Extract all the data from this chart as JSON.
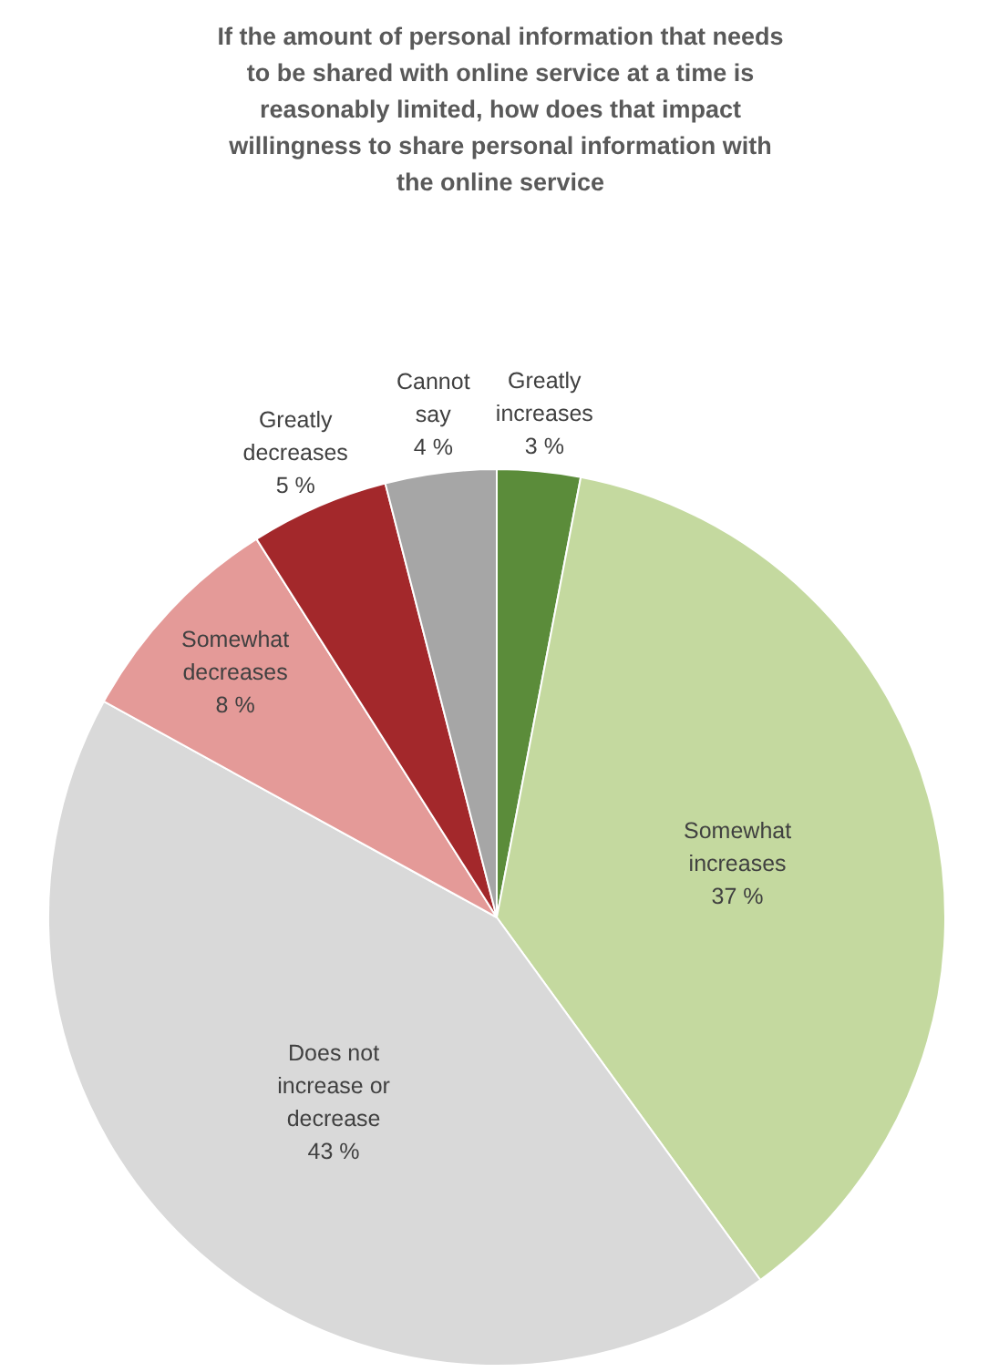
{
  "chart_data": {
    "type": "pie",
    "title": "If the amount of personal information that needs to be shared with online service at a time is reasonably limited, how does that impact willingness to share personal information with the online service",
    "categories": [
      "Greatly increases",
      "Somewhat increases",
      "Does not increase or decrease",
      "Somewhat decreases",
      "Greatly decreases",
      "Cannot say"
    ],
    "values": [
      3,
      37,
      43,
      8,
      5,
      4
    ],
    "colors": [
      "#5b8c3a",
      "#c4d99f",
      "#d9d9d9",
      "#e49a98",
      "#a3282b",
      "#a6a6a6"
    ],
    "value_labels": [
      "3 %",
      "37 %",
      "43 %",
      "8 %",
      "5 %",
      "4 %"
    ],
    "legend": false
  }
}
